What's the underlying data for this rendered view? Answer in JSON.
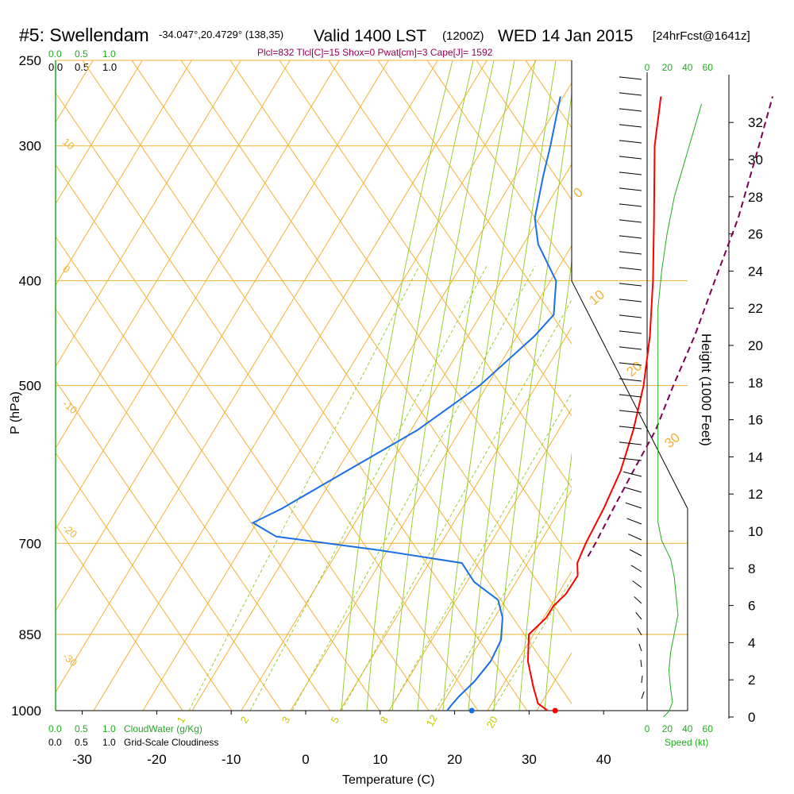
{
  "header": {
    "station": "#5: Swellendam",
    "coords": "-34.047°,20.4729° (138,35)",
    "valid": "Valid 1400 LST",
    "zulu": "(1200Z)",
    "date": "WED 14 Jan 2015",
    "fcst": "[24hrFcst@1641z]",
    "indices": "Plcl=832 Tlcl[C]=15 Shox=0 Pwat[cm]=3 Cape[J]= 1592"
  },
  "legends": {
    "cloud_ticks": [
      "0.0",
      "0.5",
      "1.0"
    ],
    "cloudwater_label": "CloudWater (g/Kg)",
    "cloudiness_label": "Grid-Scale Cloudiness",
    "speed_label": "Speed (kt)",
    "height_label": "Height (1000 Feet)"
  },
  "colors": {
    "isobar": "#f2b233",
    "dry_adiabat": "#f2b233",
    "moist_adiabat": "#9acd32",
    "mixing_ratio": "#9acd32",
    "temperature": "#ff0000",
    "dewpoint": "#1a6fe8",
    "parcel": "#7a0050",
    "speed": "#22aa22",
    "indices": "#990055"
  },
  "chart_data": {
    "type": "line",
    "title": "#5: Swellendam",
    "xlabel": "Temperature (C)",
    "ylabel": "P (hPa)",
    "xlim": [
      -34,
      46
    ],
    "pressure_range": [
      1000,
      250
    ],
    "log_pressure_axis": true,
    "skew_t": true,
    "x_ticks": [
      -30,
      -20,
      -10,
      0,
      10,
      20,
      30,
      40
    ],
    "p_ticks": [
      1000,
      850,
      700,
      500,
      400,
      300,
      250
    ],
    "height_ticks_kft": [
      0,
      2,
      4,
      6,
      8,
      10,
      12,
      14,
      16,
      18,
      20,
      22,
      24,
      26,
      28,
      30,
      32
    ],
    "speed_ticks_kt": [
      0,
      20,
      40,
      60
    ],
    "dry_adiabat_labels": [
      "-10",
      "0",
      "10",
      "20",
      "30"
    ],
    "isotherm_labels": [
      "10",
      "0",
      "-10",
      "-20",
      "-30"
    ],
    "mixing_ratio_labels": [
      "1",
      "2",
      "3",
      "5",
      "8",
      "12",
      "20"
    ],
    "series": [
      {
        "name": "Temperature",
        "p": [
          1000,
          985,
          950,
          900,
          850,
          820,
          800,
          780,
          750,
          730,
          700,
          650,
          600,
          550,
          500,
          450,
          400,
          350,
          300,
          270
        ],
        "values": [
          32.5,
          30.5,
          28.2,
          25.0,
          22.5,
          23.2,
          23.0,
          23.5,
          23.3,
          22.0,
          21.2,
          20.2,
          18.8,
          16.5,
          13.5,
          9.5,
          4.5,
          -1.5,
          -8.5,
          -12.5
        ]
      },
      {
        "name": "Dewpoint",
        "p": [
          1000,
          990,
          970,
          940,
          900,
          860,
          820,
          790,
          760,
          730,
          710,
          690,
          670,
          650,
          600,
          550,
          500,
          450,
          430,
          400,
          370,
          350,
          320,
          300,
          270
        ],
        "values": [
          19.0,
          19.0,
          19.2,
          19.8,
          20.0,
          19.3,
          17.3,
          15.0,
          10.0,
          6.5,
          -6.0,
          -21.0,
          -25.5,
          -23.0,
          -18.0,
          -12.5,
          -8.5,
          -6.0,
          -5.5,
          -8.5,
          -14.5,
          -17.5,
          -20.5,
          -22.5,
          -26.0
        ]
      },
      {
        "name": "Parcel",
        "p": [
          720,
          700,
          650,
          600,
          550,
          500,
          450,
          400,
          350,
          300,
          270
        ],
        "values": [
          22.8,
          22.5,
          21.5,
          20.5,
          19.5,
          17.5,
          15.5,
          12.8,
          9.8,
          5.5,
          2.5
        ]
      },
      {
        "name": "Surface points",
        "p": [
          1000,
          1000
        ],
        "values": [
          33.5,
          22.3
        ]
      }
    ],
    "speed_profile": {
      "height_kft": [
        0,
        0.3,
        0.8,
        1.5,
        2.5,
        3.5,
        4.5,
        5.5,
        6.5,
        7.5,
        8.5,
        9.5,
        10.5,
        12,
        14,
        16,
        18,
        20,
        22,
        24,
        26,
        28,
        30,
        32,
        33
      ],
      "values": [
        9,
        12,
        14,
        13,
        12,
        13,
        15,
        17,
        16,
        15,
        13,
        8,
        6,
        6,
        6,
        6,
        6,
        6,
        6,
        8,
        11,
        15,
        21,
        27,
        30
      ]
    }
  }
}
